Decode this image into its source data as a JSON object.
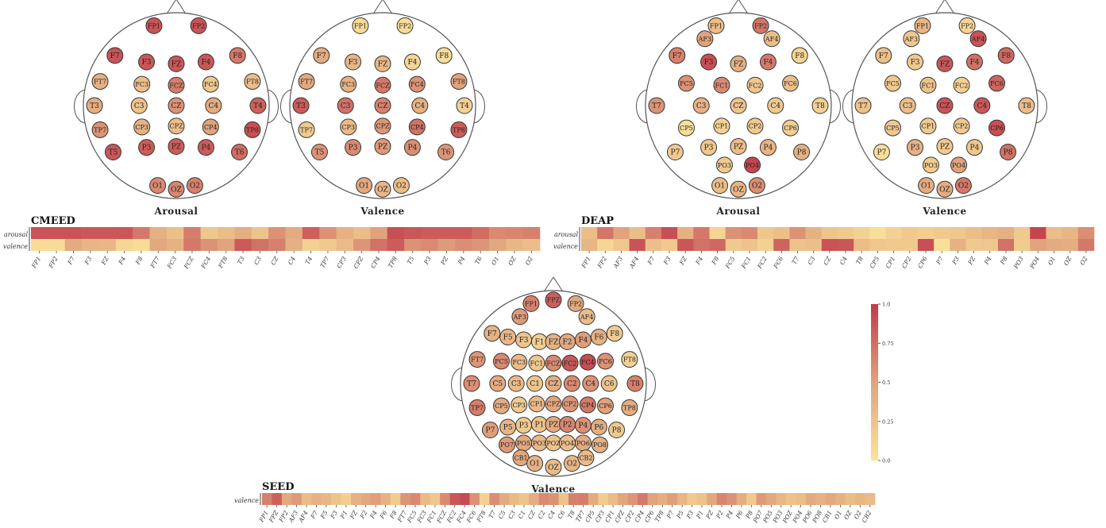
{
  "colorbar": {
    "ticks": [
      "1.0",
      "0.75",
      "0.5",
      "0.25",
      "0.0"
    ],
    "colors": [
      "#fbe39b",
      "#e0a37d",
      "#c23a4a"
    ]
  },
  "chart_data": [
    {
      "type": "heatmap",
      "dataset": "CMEED",
      "rows": [
        "arousal",
        "valence"
      ],
      "channels": [
        "FP1",
        "FP2",
        "F7",
        "F3",
        "FZ",
        "F4",
        "F8",
        "FT7",
        "FC3",
        "FCZ",
        "FC4",
        "FT8",
        "T3",
        "C3",
        "CZ",
        "C4",
        "T4",
        "TP7",
        "CP3",
        "CPZ",
        "CP4",
        "TP8",
        "T5",
        "P3",
        "PZ",
        "P4",
        "T6",
        "O1",
        "OZ",
        "O2"
      ],
      "values": {
        "arousal": [
          0.88,
          0.88,
          0.88,
          0.86,
          0.86,
          0.86,
          0.7,
          0.4,
          0.28,
          0.68,
          0.22,
          0.3,
          0.42,
          0.25,
          0.58,
          0.44,
          0.82,
          0.58,
          0.38,
          0.3,
          0.5,
          0.9,
          0.86,
          0.84,
          0.84,
          0.84,
          0.76,
          0.62,
          0.64,
          0.66
        ],
        "valence": [
          0.06,
          0.05,
          0.44,
          0.36,
          0.34,
          0.1,
          0.06,
          0.46,
          0.38,
          0.7,
          0.58,
          0.5,
          0.85,
          0.74,
          0.66,
          0.4,
          0.14,
          0.2,
          0.32,
          0.56,
          0.74,
          0.84,
          0.58,
          0.62,
          0.54,
          0.6,
          0.56,
          0.46,
          0.34,
          0.3
        ]
      },
      "topomaps": [
        "Arousal",
        "Valence"
      ]
    },
    {
      "type": "heatmap",
      "dataset": "DEAP",
      "rows": [
        "arousal",
        "valence"
      ],
      "channels": [
        "FP1",
        "FP2",
        "AF3",
        "AF4",
        "F7",
        "F3",
        "FZ",
        "F4",
        "F8",
        "FC5",
        "FC1",
        "FC2",
        "FC6",
        "T7",
        "C3",
        "CZ",
        "C4",
        "T8",
        "CP5",
        "CP1",
        "CP2",
        "CP6",
        "P7",
        "P3",
        "PZ",
        "P4",
        "P8",
        "PO3",
        "PO4",
        "O1",
        "OZ",
        "O2"
      ],
      "values": {
        "arousal": [
          0.3,
          0.72,
          0.5,
          0.3,
          0.66,
          0.9,
          0.4,
          0.7,
          0.12,
          0.58,
          0.62,
          0.22,
          0.28,
          0.58,
          0.38,
          0.24,
          0.2,
          0.14,
          0.04,
          0.14,
          0.2,
          0.16,
          0.2,
          0.22,
          0.28,
          0.36,
          0.4,
          0.2,
          0.95,
          0.3,
          0.36,
          0.6
        ],
        "valence": [
          0.36,
          0.1,
          0.22,
          0.88,
          0.28,
          0.2,
          0.86,
          0.74,
          0.78,
          0.2,
          0.26,
          0.14,
          0.8,
          0.26,
          0.28,
          0.88,
          0.86,
          0.3,
          0.22,
          0.2,
          0.2,
          0.9,
          0.04,
          0.38,
          0.2,
          0.22,
          0.74,
          0.18,
          0.5,
          0.44,
          0.42,
          0.7
        ]
      },
      "topomaps": [
        "Arousal",
        "Valence"
      ]
    },
    {
      "type": "heatmap",
      "dataset": "SEED",
      "rows": [
        "valence"
      ],
      "channels": [
        "FP1",
        "FPZ",
        "FP2",
        "AF3",
        "AF4",
        "F7",
        "F5",
        "F3",
        "F1",
        "FZ",
        "F2",
        "F4",
        "F6",
        "F8",
        "FT7",
        "FC5",
        "FC3",
        "FC1",
        "FCZ",
        "FC2",
        "FC4",
        "FC6",
        "FT8",
        "T7",
        "C5",
        "C3",
        "C1",
        "CZ",
        "C2",
        "C4",
        "C6",
        "T8",
        "TP7",
        "CP5",
        "CP3",
        "CP1",
        "CPZ",
        "CP2",
        "CP4",
        "CP6",
        "TP8",
        "P7",
        "P5",
        "P3",
        "P1",
        "PZ",
        "P2",
        "P4",
        "P6",
        "P8",
        "PO7",
        "PO5",
        "PO3",
        "POZ",
        "PO4",
        "PO6",
        "PO8",
        "CB1",
        "O1",
        "OZ",
        "O2",
        "CB2"
      ],
      "values": {
        "valence": [
          0.66,
          0.82,
          0.46,
          0.54,
          0.3,
          0.38,
          0.34,
          0.24,
          0.16,
          0.38,
          0.46,
          0.52,
          0.38,
          0.18,
          0.56,
          0.62,
          0.32,
          0.22,
          0.62,
          0.86,
          0.92,
          0.58,
          0.14,
          0.6,
          0.44,
          0.32,
          0.24,
          0.42,
          0.62,
          0.58,
          0.26,
          0.66,
          0.68,
          0.44,
          0.18,
          0.32,
          0.48,
          0.56,
          0.7,
          0.5,
          0.42,
          0.52,
          0.36,
          0.2,
          0.26,
          0.46,
          0.64,
          0.58,
          0.42,
          0.2,
          0.54,
          0.46,
          0.34,
          0.26,
          0.3,
          0.44,
          0.38,
          0.46,
          0.38,
          0.3,
          0.36,
          0.32
        ]
      },
      "topomaps": [
        "Valence"
      ]
    }
  ]
}
